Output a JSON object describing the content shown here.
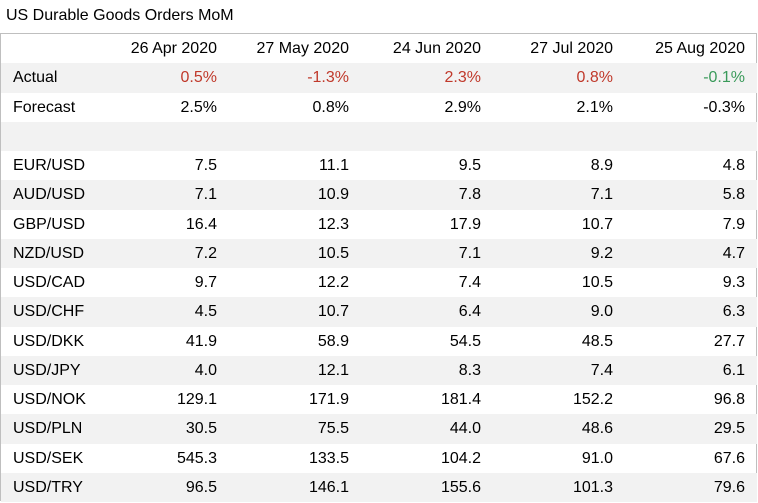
{
  "title": "US Durable Goods Orders MoM",
  "colors": {
    "actual_red": "#c0392b",
    "actual_green": "#3a9a5a",
    "row_shade": "#f2f2f2",
    "border": "#bfbfbf"
  },
  "chart_data": {
    "type": "table",
    "title": "US Durable Goods Orders MoM",
    "columns": [
      "26 Apr 2020",
      "27 May 2020",
      "24 Jun 2020",
      "27 Jul 2020",
      "25 Aug 2020"
    ],
    "actual": {
      "label": "Actual",
      "values": [
        "0.5%",
        "-1.3%",
        "2.3%",
        "0.8%",
        "-0.1%"
      ],
      "colors": [
        "red",
        "red",
        "red",
        "red",
        "green"
      ]
    },
    "forecast": {
      "label": "Forecast",
      "values": [
        "2.5%",
        "0.8%",
        "2.9%",
        "2.1%",
        "-0.3%"
      ]
    },
    "pairs": [
      {
        "name": "EUR/USD",
        "values": [
          "7.5",
          "11.1",
          "9.5",
          "8.9",
          "4.8"
        ]
      },
      {
        "name": "AUD/USD",
        "values": [
          "7.1",
          "10.9",
          "7.8",
          "7.1",
          "5.8"
        ]
      },
      {
        "name": "GBP/USD",
        "values": [
          "16.4",
          "12.3",
          "17.9",
          "10.7",
          "7.9"
        ]
      },
      {
        "name": "NZD/USD",
        "values": [
          "7.2",
          "10.5",
          "7.1",
          "9.2",
          "4.7"
        ]
      },
      {
        "name": "USD/CAD",
        "values": [
          "9.7",
          "12.2",
          "7.4",
          "10.5",
          "9.3"
        ]
      },
      {
        "name": "USD/CHF",
        "values": [
          "4.5",
          "10.7",
          "6.4",
          "9.0",
          "6.3"
        ]
      },
      {
        "name": "USD/DKK",
        "values": [
          "41.9",
          "58.9",
          "54.5",
          "48.5",
          "27.7"
        ]
      },
      {
        "name": "USD/JPY",
        "values": [
          "4.0",
          "12.1",
          "8.3",
          "7.4",
          "6.1"
        ]
      },
      {
        "name": "USD/NOK",
        "values": [
          "129.1",
          "171.9",
          "181.4",
          "152.2",
          "96.8"
        ]
      },
      {
        "name": "USD/PLN",
        "values": [
          "30.5",
          "75.5",
          "44.0",
          "48.6",
          "29.5"
        ]
      },
      {
        "name": "USD/SEK",
        "values": [
          "545.3",
          "133.5",
          "104.2",
          "91.0",
          "67.6"
        ]
      },
      {
        "name": "USD/TRY",
        "values": [
          "96.5",
          "146.1",
          "155.6",
          "101.3",
          "79.6"
        ]
      }
    ]
  }
}
